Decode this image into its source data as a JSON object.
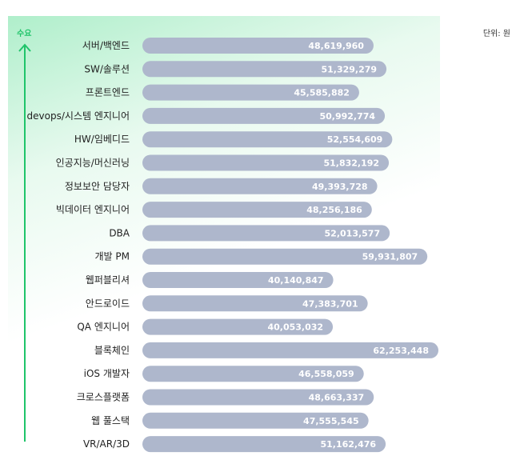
{
  "unit_label": "단위: 원",
  "axis_label": "수요",
  "colors": {
    "bar": "#aeb7cc",
    "arrow": "#1fc46a",
    "gradient": "#7be2a8"
  },
  "chart_data": {
    "type": "bar",
    "orientation": "horizontal",
    "title": "",
    "ylabel": "수요",
    "unit": "단위: 원",
    "xlim": [
      0,
      62253448
    ],
    "categories": [
      "서버/백엔드",
      "SW/솔루션",
      "프론트엔드",
      "devops/시스템 엔지니어",
      "HW/임베디드",
      "인공지능/머신러닝",
      "정보보안 담당자",
      "빅데이터 엔지니어",
      "DBA",
      "개발 PM",
      "웹퍼블리셔",
      "안드로이드",
      "QA 엔지니어",
      "블록체인",
      "iOS 개발자",
      "크로스플랫폼",
      "웹 풀스택",
      "VR/AR/3D"
    ],
    "values": [
      48619960,
      51329279,
      45585882,
      50992774,
      52554609,
      51832192,
      49393728,
      48256186,
      52013577,
      59931807,
      40140847,
      47383701,
      40053032,
      62253448,
      46558059,
      48663337,
      47555545,
      51162476
    ],
    "value_labels": [
      "48,619,960",
      "51,329,279",
      "45,585,882",
      "50,992,774",
      "52,554,609",
      "51,832,192",
      "49,393,728",
      "48,256,186",
      "52,013,577",
      "59,931,807",
      "40,140,847",
      "47,383,701",
      "40,053,032",
      "62,253,448",
      "46,558,059",
      "48,663,337",
      "47,555,545",
      "51,162,476"
    ]
  }
}
